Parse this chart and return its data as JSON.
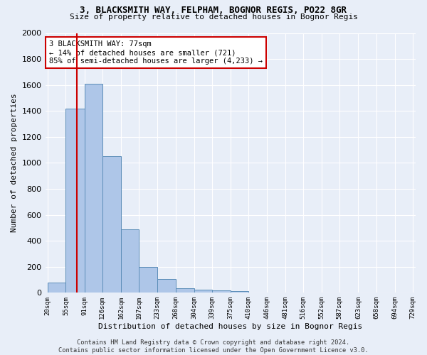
{
  "title": "3, BLACKSMITH WAY, FELPHAM, BOGNOR REGIS, PO22 8GR",
  "subtitle": "Size of property relative to detached houses in Bognor Regis",
  "xlabel": "Distribution of detached houses by size in Bognor Regis",
  "ylabel": "Number of detached properties",
  "bin_edges": [
    20,
    55,
    91,
    126,
    162,
    197,
    233,
    268,
    304,
    339,
    375,
    410,
    446,
    481,
    516,
    552,
    587,
    623,
    658,
    694,
    729
  ],
  "bin_labels": [
    "20sqm",
    "55sqm",
    "91sqm",
    "126sqm",
    "162sqm",
    "197sqm",
    "233sqm",
    "268sqm",
    "304sqm",
    "339sqm",
    "375sqm",
    "410sqm",
    "446sqm",
    "481sqm",
    "516sqm",
    "552sqm",
    "587sqm",
    "623sqm",
    "658sqm",
    "694sqm",
    "729sqm"
  ],
  "bar_heights": [
    80,
    1420,
    1610,
    1050,
    490,
    200,
    105,
    35,
    25,
    20,
    15,
    0,
    0,
    0,
    0,
    0,
    0,
    0,
    0,
    0
  ],
  "bar_color": "#aec6e8",
  "bar_edgecolor": "#5b8db8",
  "background_color": "#e8eef8",
  "grid_color": "white",
  "vline_x": 77,
  "vline_color": "#cc0000",
  "annotation_text": "3 BLACKSMITH WAY: 77sqm\n← 14% of detached houses are smaller (721)\n85% of semi-detached houses are larger (4,233) →",
  "annotation_box_color": "white",
  "annotation_box_edgecolor": "#cc0000",
  "footnote": "Contains HM Land Registry data © Crown copyright and database right 2024.\nContains public sector information licensed under the Open Government Licence v3.0.",
  "ylim": [
    0,
    2000
  ],
  "yticks": [
    0,
    200,
    400,
    600,
    800,
    1000,
    1200,
    1400,
    1600,
    1800,
    2000
  ]
}
